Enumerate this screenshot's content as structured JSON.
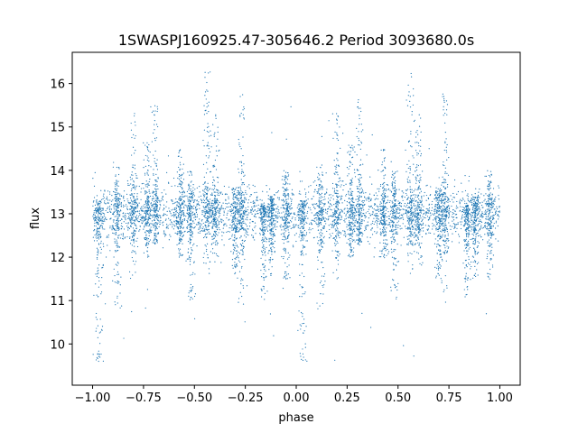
{
  "chart_data": {
    "type": "scatter",
    "title": "1SWASPJ160925.47-305646.2 Period 3093680.0s",
    "xlabel": "phase",
    "ylabel": "flux",
    "xlim": [
      -1.1,
      1.1
    ],
    "ylim": [
      9.05,
      16.72
    ],
    "x_ticks": [
      -1.0,
      -0.75,
      -0.5,
      -0.25,
      0.0,
      0.25,
      0.5,
      0.75,
      1.0
    ],
    "x_tick_labels": [
      "−1.00",
      "−0.75",
      "−0.50",
      "−0.25",
      "0.00",
      "0.25",
      "0.50",
      "0.75",
      "1.00"
    ],
    "y_ticks": [
      10,
      11,
      12,
      13,
      14,
      15,
      16
    ],
    "y_tick_labels": [
      "10",
      "11",
      "12",
      "13",
      "14",
      "15",
      "16"
    ],
    "grid": false,
    "marker_color": "#1f77b4",
    "series": [
      {
        "x_range": [
          -1.0,
          1.0
        ],
        "baseline": 13.0,
        "scatter": 0.3,
        "clusters": [
          {
            "x": -0.97,
            "low": 9.6,
            "high": 13.3
          },
          {
            "x": -0.88,
            "low": 10.8,
            "high": 14.2
          },
          {
            "x": -0.8,
            "low": 11.5,
            "high": 15.4
          },
          {
            "x": -0.73,
            "low": 12.0,
            "high": 14.7
          },
          {
            "x": -0.69,
            "low": 12.3,
            "high": 15.7
          },
          {
            "x": -0.57,
            "low": 12.0,
            "high": 14.5
          },
          {
            "x": -0.52,
            "low": 11.0,
            "high": 14.0
          },
          {
            "x": -0.44,
            "low": 11.5,
            "high": 16.3
          },
          {
            "x": -0.4,
            "low": 11.8,
            "high": 15.3
          },
          {
            "x": -0.3,
            "low": 11.5,
            "high": 13.6
          },
          {
            "x": -0.27,
            "low": 10.9,
            "high": 15.8
          },
          {
            "x": -0.16,
            "low": 11.0,
            "high": 13.2
          },
          {
            "x": -0.12,
            "low": 11.5,
            "high": 13.4
          },
          {
            "x": -0.05,
            "low": 11.5,
            "high": 14.0
          },
          {
            "x": 0.03,
            "low": 9.6,
            "high": 13.3
          },
          {
            "x": 0.12,
            "low": 10.8,
            "high": 14.2
          },
          {
            "x": 0.2,
            "low": 11.5,
            "high": 15.4
          },
          {
            "x": 0.27,
            "low": 12.0,
            "high": 14.7
          },
          {
            "x": 0.31,
            "low": 12.3,
            "high": 15.7
          },
          {
            "x": 0.43,
            "low": 12.0,
            "high": 14.5
          },
          {
            "x": 0.48,
            "low": 11.0,
            "high": 14.0
          },
          {
            "x": 0.56,
            "low": 11.5,
            "high": 16.3
          },
          {
            "x": 0.6,
            "low": 11.8,
            "high": 15.3
          },
          {
            "x": 0.7,
            "low": 11.5,
            "high": 13.6
          },
          {
            "x": 0.73,
            "low": 10.9,
            "high": 15.8
          },
          {
            "x": 0.84,
            "low": 11.0,
            "high": 13.2
          },
          {
            "x": 0.88,
            "low": 11.5,
            "high": 13.4
          },
          {
            "x": 0.95,
            "low": 11.5,
            "high": 14.0
          }
        ]
      }
    ]
  }
}
